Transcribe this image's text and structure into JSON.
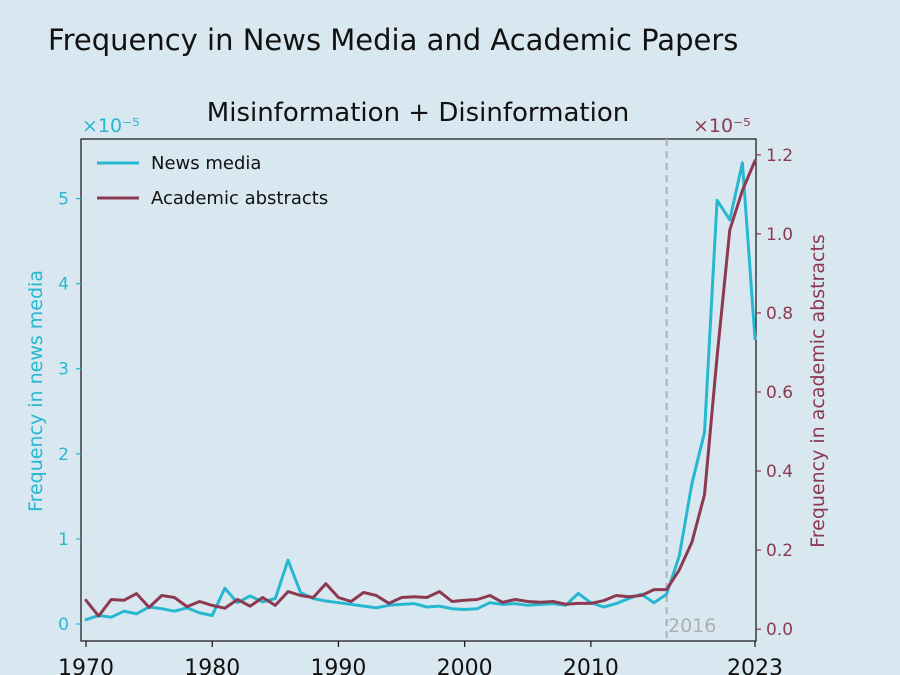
{
  "suptitle": "Frequency in News Media and Academic Papers",
  "chart_data": {
    "type": "line",
    "title": "Misinformation + Disinformation",
    "xlabel": "",
    "xlim": [
      1970,
      2023
    ],
    "x_ticks": [
      1970,
      1980,
      1990,
      2000,
      2010,
      2023
    ],
    "x_tick_labels": [
      "1970",
      "1980",
      "1990",
      "2000",
      "2010",
      "2023"
    ],
    "left_axis": {
      "label": "Frequency in news media",
      "exponent_label": "×10⁻⁵",
      "ylim": [
        -0.2,
        5.7
      ],
      "ticks": [
        0,
        1,
        2,
        3,
        4,
        5
      ],
      "tick_labels": [
        "0",
        "1",
        "2",
        "3",
        "4",
        "5"
      ],
      "color": "#26b8d0"
    },
    "right_axis": {
      "label": "Frequency in academic abstracts",
      "exponent_label": "×10⁻⁵",
      "ylim": [
        -0.03,
        1.24
      ],
      "ticks": [
        0.0,
        0.2,
        0.4,
        0.6,
        0.8,
        1.0,
        1.2
      ],
      "tick_labels": [
        "0.0",
        "0.2",
        "0.4",
        "0.6",
        "0.8",
        "1.0",
        "1.2"
      ],
      "color": "#8b3a52"
    },
    "grid": false,
    "legend_position": "top-left",
    "series": [
      {
        "name": "News media",
        "axis": "left",
        "color": "#26b8d0",
        "x": [
          1970,
          1971,
          1972,
          1973,
          1974,
          1975,
          1976,
          1977,
          1978,
          1979,
          1980,
          1981,
          1982,
          1983,
          1984,
          1985,
          1986,
          1987,
          1988,
          1989,
          1990,
          1991,
          1992,
          1993,
          1994,
          1995,
          1996,
          1997,
          1998,
          1999,
          2000,
          2001,
          2002,
          2003,
          2004,
          2005,
          2006,
          2007,
          2008,
          2009,
          2010,
          2011,
          2012,
          2013,
          2014,
          2015,
          2016,
          2017,
          2018,
          2019,
          2020,
          2021,
          2022,
          2023
        ],
        "values": [
          0.05,
          0.1,
          0.08,
          0.15,
          0.12,
          0.2,
          0.18,
          0.15,
          0.19,
          0.13,
          0.1,
          0.42,
          0.25,
          0.33,
          0.26,
          0.3,
          0.75,
          0.37,
          0.3,
          0.27,
          0.25,
          0.23,
          0.21,
          0.19,
          0.22,
          0.23,
          0.24,
          0.2,
          0.21,
          0.18,
          0.17,
          0.18,
          0.25,
          0.23,
          0.24,
          0.22,
          0.23,
          0.24,
          0.22,
          0.36,
          0.25,
          0.2,
          0.24,
          0.3,
          0.35,
          0.25,
          0.35,
          0.8,
          1.65,
          2.25,
          4.98,
          4.75,
          5.42,
          3.35
        ]
      },
      {
        "name": "Academic abstracts",
        "axis": "right",
        "color": "#8b3a52",
        "x": [
          1970,
          1971,
          1972,
          1973,
          1974,
          1975,
          1976,
          1977,
          1978,
          1979,
          1980,
          1981,
          1982,
          1983,
          1984,
          1985,
          1986,
          1987,
          1988,
          1989,
          1990,
          1991,
          1992,
          1993,
          1994,
          1995,
          1996,
          1997,
          1998,
          1999,
          2000,
          2001,
          2002,
          2003,
          2004,
          2005,
          2006,
          2007,
          2008,
          2009,
          2010,
          2011,
          2012,
          2013,
          2014,
          2015,
          2016,
          2017,
          2018,
          2019,
          2020,
          2021,
          2022,
          2023
        ],
        "values": [
          0.073,
          0.033,
          0.075,
          0.073,
          0.09,
          0.055,
          0.085,
          0.08,
          0.057,
          0.07,
          0.06,
          0.053,
          0.075,
          0.058,
          0.08,
          0.06,
          0.095,
          0.085,
          0.08,
          0.115,
          0.08,
          0.07,
          0.093,
          0.085,
          0.065,
          0.08,
          0.082,
          0.08,
          0.095,
          0.07,
          0.073,
          0.075,
          0.085,
          0.068,
          0.075,
          0.07,
          0.068,
          0.07,
          0.063,
          0.065,
          0.065,
          0.072,
          0.085,
          0.082,
          0.085,
          0.1,
          0.1,
          0.15,
          0.22,
          0.34,
          0.69,
          1.01,
          1.11,
          1.185
        ]
      }
    ],
    "annotations": [
      {
        "type": "vline",
        "x": 2016,
        "label": "2016",
        "color": "#aab0b5",
        "style": "dashed"
      }
    ]
  }
}
